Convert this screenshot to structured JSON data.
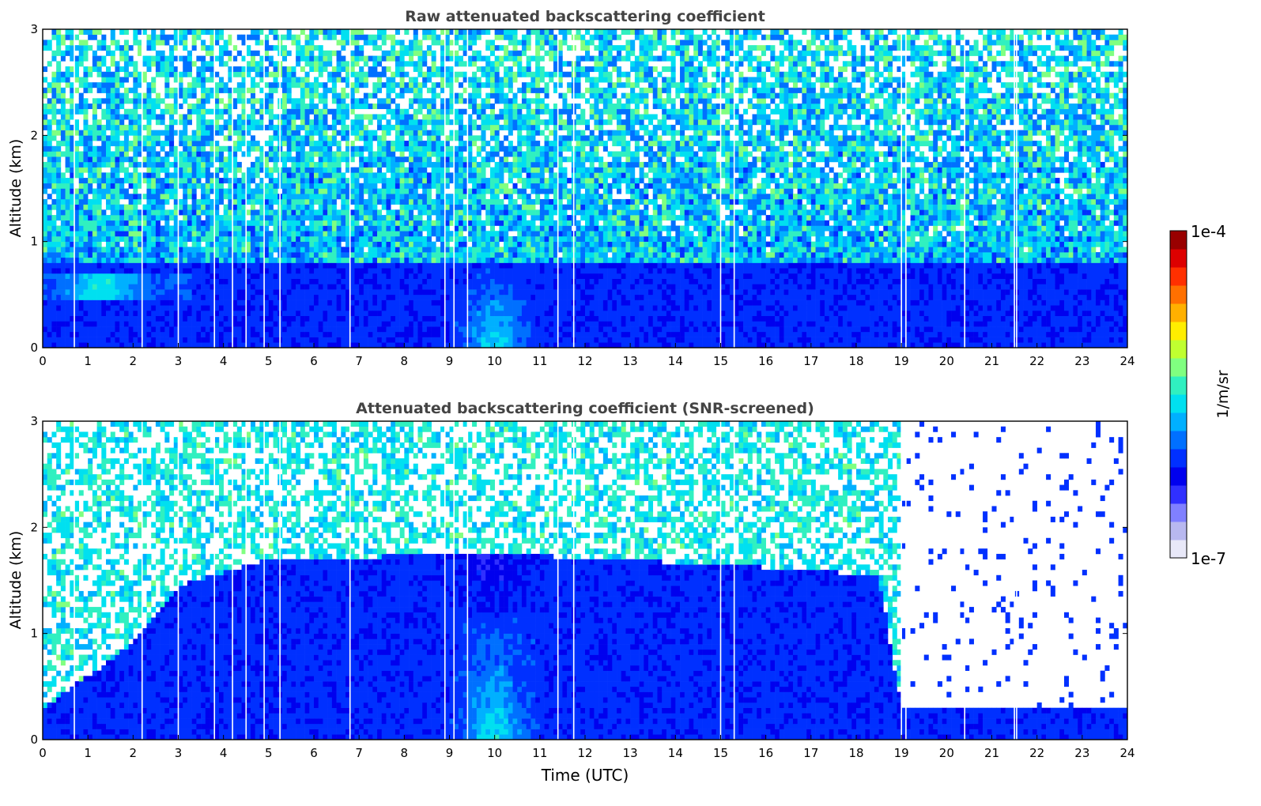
{
  "chart_data": [
    {
      "type": "heatmap",
      "title": "Raw attenuated backscattering coefficient",
      "xlabel": "",
      "ylabel": "Altitude (km)",
      "xlim": [
        0,
        24
      ],
      "ylim": [
        0,
        3
      ],
      "x_ticks": [
        "0",
        "1",
        "2",
        "3",
        "4",
        "5",
        "6",
        "7",
        "8",
        "9",
        "10",
        "11",
        "12",
        "13",
        "14",
        "15",
        "16",
        "17",
        "18",
        "19",
        "20",
        "21",
        "22",
        "23",
        "24"
      ],
      "y_ticks": [
        "0",
        "1",
        "2",
        "3"
      ],
      "features": {
        "noise_top_km": 3.0,
        "dense_signal_top_km": 0.8,
        "aerosol_layer": {
          "start_h": 0.0,
          "end_h": 3.3,
          "top_km": 0.7,
          "peak_at_h": 1.3
        },
        "boundary_layer_mixing_peak_h": 10.0,
        "dropout_columns_h": [
          0.7,
          2.2,
          3.0,
          3.8,
          4.2,
          4.5,
          4.9,
          5.25,
          6.8,
          8.9,
          9.1,
          9.4,
          11.4,
          11.75,
          15.0,
          15.3,
          19.0,
          19.1,
          20.4,
          21.5,
          21.55
        ]
      }
    },
    {
      "type": "heatmap",
      "title": "Attenuated backscattering coefficient (SNR-screened)",
      "xlabel": "Time (UTC)",
      "ylabel": "Altitude (km)",
      "xlim": [
        0,
        24
      ],
      "ylim": [
        0,
        3
      ],
      "x_ticks": [
        "0",
        "1",
        "2",
        "3",
        "4",
        "5",
        "6",
        "7",
        "8",
        "9",
        "10",
        "11",
        "12",
        "13",
        "14",
        "15",
        "16",
        "17",
        "18",
        "19",
        "20",
        "21",
        "22",
        "23",
        "24"
      ],
      "y_ticks": [
        "0",
        "1",
        "2",
        "3"
      ],
      "features": {
        "signal_top_km_profile": [
          [
            0,
            0.3
          ],
          [
            2,
            0.9
          ],
          [
            3,
            1.45
          ],
          [
            5,
            1.7
          ],
          [
            10,
            1.75
          ],
          [
            15,
            1.65
          ],
          [
            18.5,
            1.55
          ],
          [
            19,
            0.3
          ],
          [
            24,
            0.3
          ]
        ],
        "sparse_layer_top_km": 3.0,
        "boundary_layer_mixing_peak_h": 10.0
      }
    }
  ],
  "colorbar": {
    "label": "1/m/sr",
    "max_label": "1e-4",
    "min_label": "1e-7",
    "colors": [
      "#e8e8f8",
      "#b8b8f0",
      "#8080ff",
      "#3030ff",
      "#0000ee",
      "#0030ff",
      "#0070ff",
      "#00b0ff",
      "#00e0f0",
      "#30f0c0",
      "#80ff80",
      "#c0ff30",
      "#ffee00",
      "#ffb000",
      "#ff7000",
      "#ff3000",
      "#dd0000",
      "#990000"
    ]
  }
}
